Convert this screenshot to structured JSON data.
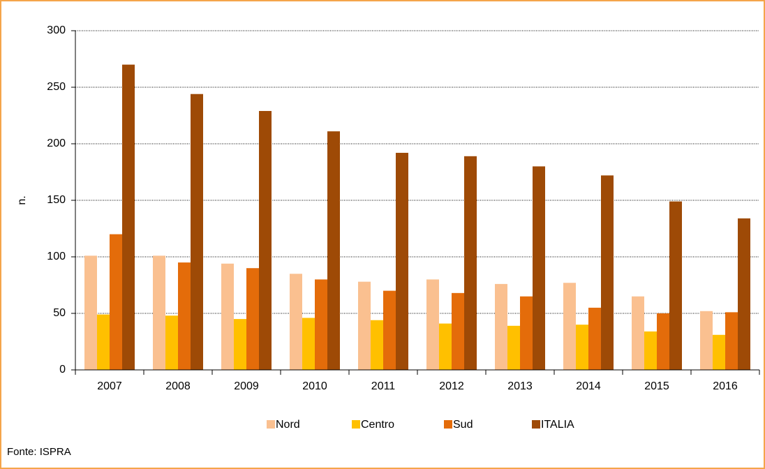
{
  "chart_data": {
    "type": "bar",
    "y_label": "n.",
    "source": "Fonte: ISPRA",
    "categories": [
      "2007",
      "2008",
      "2009",
      "2010",
      "2011",
      "2012",
      "2013",
      "2014",
      "2015",
      "2016"
    ],
    "series": [
      {
        "name": "Nord",
        "color": "#fac090",
        "values": [
          101,
          101,
          94,
          85,
          78,
          80,
          76,
          77,
          65,
          52
        ]
      },
      {
        "name": "Centro",
        "color": "#ffc000",
        "values": [
          49,
          48,
          45,
          46,
          44,
          41,
          39,
          40,
          34,
          31
        ]
      },
      {
        "name": "Sud",
        "color": "#e46c0a",
        "values": [
          120,
          95,
          90,
          80,
          70,
          68,
          65,
          55,
          50,
          51
        ]
      },
      {
        "name": "ITALIA",
        "color": "#9e4a06",
        "values": [
          270,
          244,
          229,
          211,
          192,
          189,
          180,
          172,
          149,
          134
        ]
      }
    ],
    "ylim": [
      0,
      300
    ],
    "yticks": [
      0,
      50,
      100,
      150,
      200,
      250,
      300
    ],
    "grid": true,
    "legend": "bottom"
  }
}
